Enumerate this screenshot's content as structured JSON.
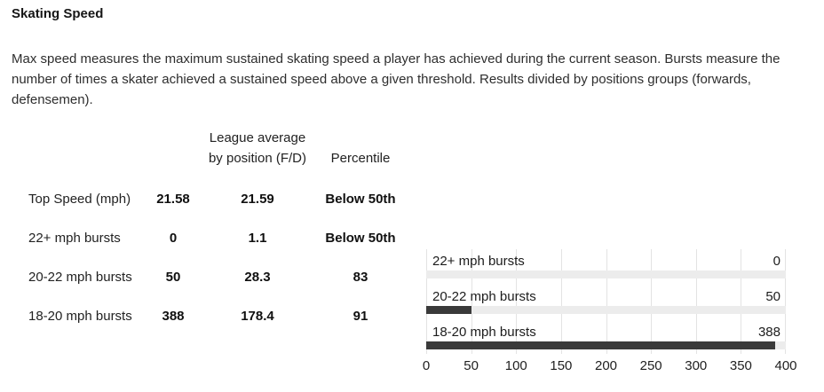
{
  "section": {
    "title": "Skating Speed",
    "description": "Max speed measures the maximum sustained skating speed a player has achieved during the current season. Bursts measure the number of times a skater achieved a sustained speed above a given threshold. Results divided by positions groups (forwards, defensemen)."
  },
  "table": {
    "col_headers": {
      "league_avg_lines": [
        "League average",
        "by position (F/D)"
      ],
      "percentile": "Percentile"
    },
    "rows": [
      {
        "label": "Top Speed (mph)",
        "value": "21.58",
        "league_avg": "21.59",
        "percentile": "Below 50th"
      },
      {
        "label": "22+ mph bursts",
        "value": "0",
        "league_avg": "1.1",
        "percentile": "Below 50th"
      },
      {
        "label": "20-22 mph bursts",
        "value": "50",
        "league_avg": "28.3",
        "percentile": "83"
      },
      {
        "label": "18-20 mph bursts",
        "value": "388",
        "league_avg": "178.4",
        "percentile": "91"
      }
    ]
  },
  "chart_data": {
    "type": "bar",
    "orientation": "horizontal",
    "categories": [
      "22+ mph bursts",
      "20-22 mph bursts",
      "18-20 mph bursts"
    ],
    "values": [
      0,
      50,
      388
    ],
    "xlim": [
      0,
      400
    ],
    "ticks": [
      "0",
      "50",
      "100",
      "150",
      "200",
      "250",
      "300",
      "350",
      "400"
    ],
    "grid": true,
    "legend": "none",
    "title": "",
    "xlabel": "",
    "ylabel": "",
    "bar_color": "#3a3a3a",
    "track_color": "#ececec",
    "gridline_color": "#e3e3e3"
  }
}
